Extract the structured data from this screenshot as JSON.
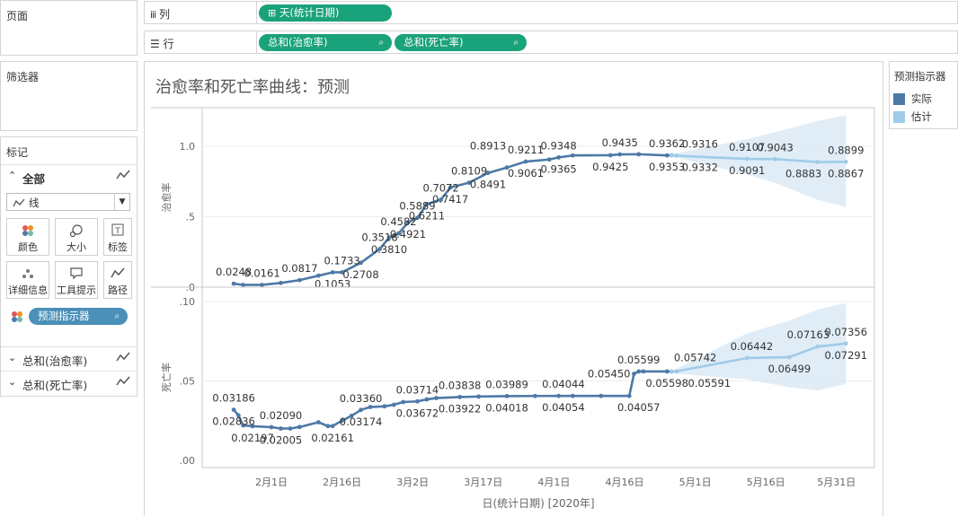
{
  "left": {
    "pages_title": "页面",
    "filters_title": "筛选器",
    "marks_title": "标记",
    "all_label": "全部",
    "mark_type": "线",
    "buttons": {
      "color": "颜色",
      "size": "大小",
      "label": "标签",
      "detail": "详细信息",
      "tooltip": "工具提示",
      "path": "路径"
    },
    "forecast_pill": "预测指示器",
    "measure_1": "总和(治愈率)",
    "measure_2": "总和(死亡率)"
  },
  "shelves": {
    "columns_label": "列",
    "rows_label": "行",
    "columns_pill": "天(统计日期)",
    "rows_pill_1": "总和(治愈率)",
    "rows_pill_2": "总和(死亡率)"
  },
  "legend": {
    "title": "预测指示器",
    "items": [
      {
        "label": "实际",
        "color": "#4e79a7"
      },
      {
        "label": "估计",
        "color": "#a0cbe8"
      }
    ]
  },
  "chart_data": [
    {
      "type": "line",
      "title": "治愈率和死亡率曲线：预测",
      "ylabel": "治愈率",
      "xlabel": "日(统计日期) [2020年]",
      "x_ticks": [
        "2月1日",
        "2月16日",
        "3月2日",
        "3月17日",
        "4月1日",
        "4月16日",
        "5月1日",
        "5月16日",
        "5月31日"
      ],
      "y_ticks": [
        ".0",
        ".5",
        "1.0"
      ],
      "ylim": [
        0,
        1.25
      ],
      "x_domain_days": [
        -15,
        124
      ],
      "actual": {
        "x": [
          -8,
          -6,
          -2,
          2,
          6,
          10,
          13,
          15,
          19,
          23,
          25,
          27,
          29,
          31,
          33,
          36,
          38,
          42,
          46,
          50,
          54,
          59,
          61,
          64,
          72,
          74,
          78,
          84,
          85
        ],
        "y": [
          0.0248,
          0.0161,
          0.0161,
          0.03,
          0.05,
          0.0817,
          0.1053,
          0.1053,
          0.1733,
          0.2708,
          0.3518,
          0.381,
          0.4582,
          0.4921,
          0.5889,
          0.6211,
          0.7072,
          0.7417,
          0.8109,
          0.8491,
          0.8913,
          0.9061,
          0.9211,
          0.9348,
          0.9365,
          0.9425,
          0.9435,
          0.9353,
          0.9362
        ]
      },
      "estimate": {
        "x": [
          85,
          86,
          101,
          107,
          116,
          122
        ],
        "y": [
          0.9362,
          0.9332,
          0.9107,
          0.9091,
          0.8883,
          0.8899
        ],
        "band_upper": [
          0.94,
          0.95,
          1.05,
          1.1,
          1.18,
          1.22
        ],
        "band_lower": [
          0.93,
          0.92,
          0.8,
          0.74,
          0.62,
          0.57
        ]
      },
      "labels": [
        {
          "x": -8,
          "y": 0.0248,
          "text": "0.0248",
          "pos": "above"
        },
        {
          "x": -2,
          "y": 0.0161,
          "text": "0.0161",
          "pos": "above"
        },
        {
          "x": 6,
          "y": 0.05,
          "text": "0.0817",
          "pos": "above"
        },
        {
          "x": 13,
          "y": 0.1053,
          "text": "0.1053",
          "pos": "below"
        },
        {
          "x": 15,
          "y": 0.1053,
          "text": "0.1733",
          "pos": "above"
        },
        {
          "x": 19,
          "y": 0.1733,
          "text": "0.2708",
          "pos": "below"
        },
        {
          "x": 23,
          "y": 0.2708,
          "text": "0.3518",
          "pos": "above"
        },
        {
          "x": 25,
          "y": 0.3518,
          "text": "0.3810",
          "pos": "below"
        },
        {
          "x": 27,
          "y": 0.381,
          "text": "0.4582",
          "pos": "above"
        },
        {
          "x": 29,
          "y": 0.4582,
          "text": "0.4921",
          "pos": "below"
        },
        {
          "x": 31,
          "y": 0.4921,
          "text": "0.5889",
          "pos": "above"
        },
        {
          "x": 33,
          "y": 0.5889,
          "text": "0.6211",
          "pos": "below"
        },
        {
          "x": 36,
          "y": 0.6211,
          "text": "0.7072",
          "pos": "above"
        },
        {
          "x": 38,
          "y": 0.7072,
          "text": "0.7417",
          "pos": "below"
        },
        {
          "x": 42,
          "y": 0.7417,
          "text": "0.8109",
          "pos": "above"
        },
        {
          "x": 46,
          "y": 0.8109,
          "text": "0.8491",
          "pos": "below"
        },
        {
          "x": 46,
          "y": 0.8109,
          "text": "0.8913",
          "pos": "above2"
        },
        {
          "x": 54,
          "y": 0.8913,
          "text": "0.9061",
          "pos": "below"
        },
        {
          "x": 54,
          "y": 0.8913,
          "text": "0.9211",
          "pos": "above"
        },
        {
          "x": 61,
          "y": 0.9211,
          "text": "0.9348",
          "pos": "above"
        },
        {
          "x": 61,
          "y": 0.9211,
          "text": "0.9365",
          "pos": "below"
        },
        {
          "x": 74,
          "y": 0.9425,
          "text": "0.9435",
          "pos": "above"
        },
        {
          "x": 72,
          "y": 0.9365,
          "text": "0.9425",
          "pos": "below"
        },
        {
          "x": 84,
          "y": 0.9353,
          "text": "0.9353",
          "pos": "below"
        },
        {
          "x": 84,
          "y": 0.9353,
          "text": "0.9362",
          "pos": "above"
        },
        {
          "x": 91,
          "y": 0.9332,
          "text": "0.9316",
          "pos": "above"
        },
        {
          "x": 91,
          "y": 0.9332,
          "text": "0.9332",
          "pos": "below"
        },
        {
          "x": 101,
          "y": 0.9107,
          "text": "0.9107",
          "pos": "above"
        },
        {
          "x": 107,
          "y": 0.9091,
          "text": "0.9043",
          "pos": "above"
        },
        {
          "x": 101,
          "y": 0.9107,
          "text": "0.9091",
          "pos": "below"
        },
        {
          "x": 113,
          "y": 0.8883,
          "text": "0.8883",
          "pos": "below"
        },
        {
          "x": 122,
          "y": 0.8899,
          "text": "0.8899",
          "pos": "above"
        },
        {
          "x": 122,
          "y": 0.8899,
          "text": "0.8867",
          "pos": "below"
        }
      ]
    },
    {
      "type": "line",
      "ylabel": "死亡率",
      "y_ticks": [
        ".00",
        ".05",
        ".10"
      ],
      "ylim": [
        0,
        0.102
      ],
      "x_domain_days": [
        -15,
        124
      ],
      "actual": {
        "x": [
          -8,
          -7,
          -6,
          -4,
          0,
          2,
          4,
          6,
          10,
          12,
          13,
          15,
          17,
          19,
          21,
          24,
          26,
          28,
          31,
          33,
          35,
          40,
          44,
          50,
          56,
          61,
          64,
          70,
          76,
          77,
          78,
          79,
          84,
          85
        ],
        "y": [
          0.03186,
          0.02836,
          0.02197,
          0.0215,
          0.0209,
          0.02005,
          0.02005,
          0.021,
          0.024,
          0.02161,
          0.02161,
          0.025,
          0.028,
          0.03174,
          0.0336,
          0.034,
          0.035,
          0.03672,
          0.03714,
          0.03838,
          0.03922,
          0.03989,
          0.04018,
          0.04044,
          0.04054,
          0.04057,
          0.04057,
          0.04057,
          0.04057,
          0.0545,
          0.05598,
          0.05599,
          0.05598,
          0.05591
        ]
      },
      "estimate": {
        "x": [
          85,
          86,
          101,
          110,
          116,
          122
        ],
        "y": [
          0.05591,
          0.056,
          0.06442,
          0.06499,
          0.07163,
          0.07356
        ],
        "band_upper": [
          0.0562,
          0.0575,
          0.08,
          0.088,
          0.095,
          0.099
        ],
        "band_lower": [
          0.0556,
          0.0545,
          0.051,
          0.046,
          0.044,
          0.048
        ]
      },
      "labels": [
        {
          "x": -8,
          "y": 0.03186,
          "text": "0.03186",
          "pos": "above"
        },
        {
          "x": -8,
          "y": 0.03186,
          "text": "0.02836",
          "pos": "below"
        },
        {
          "x": -4,
          "y": 0.0215,
          "text": "0.02197",
          "pos": "below"
        },
        {
          "x": 2,
          "y": 0.0209,
          "text": "0.02090",
          "pos": "above"
        },
        {
          "x": 2,
          "y": 0.02005,
          "text": "0.02005",
          "pos": "below"
        },
        {
          "x": 13,
          "y": 0.02161,
          "text": "0.02161",
          "pos": "below"
        },
        {
          "x": 19,
          "y": 0.03174,
          "text": "0.03360",
          "pos": "above"
        },
        {
          "x": 19,
          "y": 0.03174,
          "text": "0.03174",
          "pos": "below"
        },
        {
          "x": 31,
          "y": 0.03714,
          "text": "0.03714",
          "pos": "above"
        },
        {
          "x": 31,
          "y": 0.03714,
          "text": "0.03672",
          "pos": "below"
        },
        {
          "x": 40,
          "y": 0.03989,
          "text": "0.03838",
          "pos": "above"
        },
        {
          "x": 40,
          "y": 0.03989,
          "text": "0.03922",
          "pos": "below"
        },
        {
          "x": 50,
          "y": 0.04044,
          "text": "0.03989",
          "pos": "above"
        },
        {
          "x": 50,
          "y": 0.04044,
          "text": "0.04018",
          "pos": "below"
        },
        {
          "x": 62,
          "y": 0.04054,
          "text": "0.04044",
          "pos": "above"
        },
        {
          "x": 62,
          "y": 0.04054,
          "text": "0.04054",
          "pos": "below"
        },
        {
          "x": 77,
          "y": 0.0545,
          "text": "0.05450",
          "pos": "left"
        },
        {
          "x": 78,
          "y": 0.04057,
          "text": "0.04057",
          "pos": "below"
        },
        {
          "x": 78,
          "y": 0.05599,
          "text": "0.05599",
          "pos": "above"
        },
        {
          "x": 84,
          "y": 0.05598,
          "text": "0.05598",
          "pos": "below"
        },
        {
          "x": 90,
          "y": 0.05742,
          "text": "0.05742",
          "pos": "above"
        },
        {
          "x": 93,
          "y": 0.05591,
          "text": "0.05591",
          "pos": "below"
        },
        {
          "x": 102,
          "y": 0.06442,
          "text": "0.06442",
          "pos": "above"
        },
        {
          "x": 110,
          "y": 0.06499,
          "text": "0.06499",
          "pos": "below"
        },
        {
          "x": 114,
          "y": 0.07163,
          "text": "0.07163",
          "pos": "above"
        },
        {
          "x": 122,
          "y": 0.07356,
          "text": "0.07356",
          "pos": "above"
        },
        {
          "x": 122,
          "y": 0.07356,
          "text": "0.07291",
          "pos": "below"
        }
      ]
    }
  ],
  "colors": {
    "actual": "#4e79a7",
    "estimate": "#a0cbe8",
    "band": "#dbeaf6",
    "pill": "#1aa27a",
    "forecast_pill": "#4a90b8"
  }
}
